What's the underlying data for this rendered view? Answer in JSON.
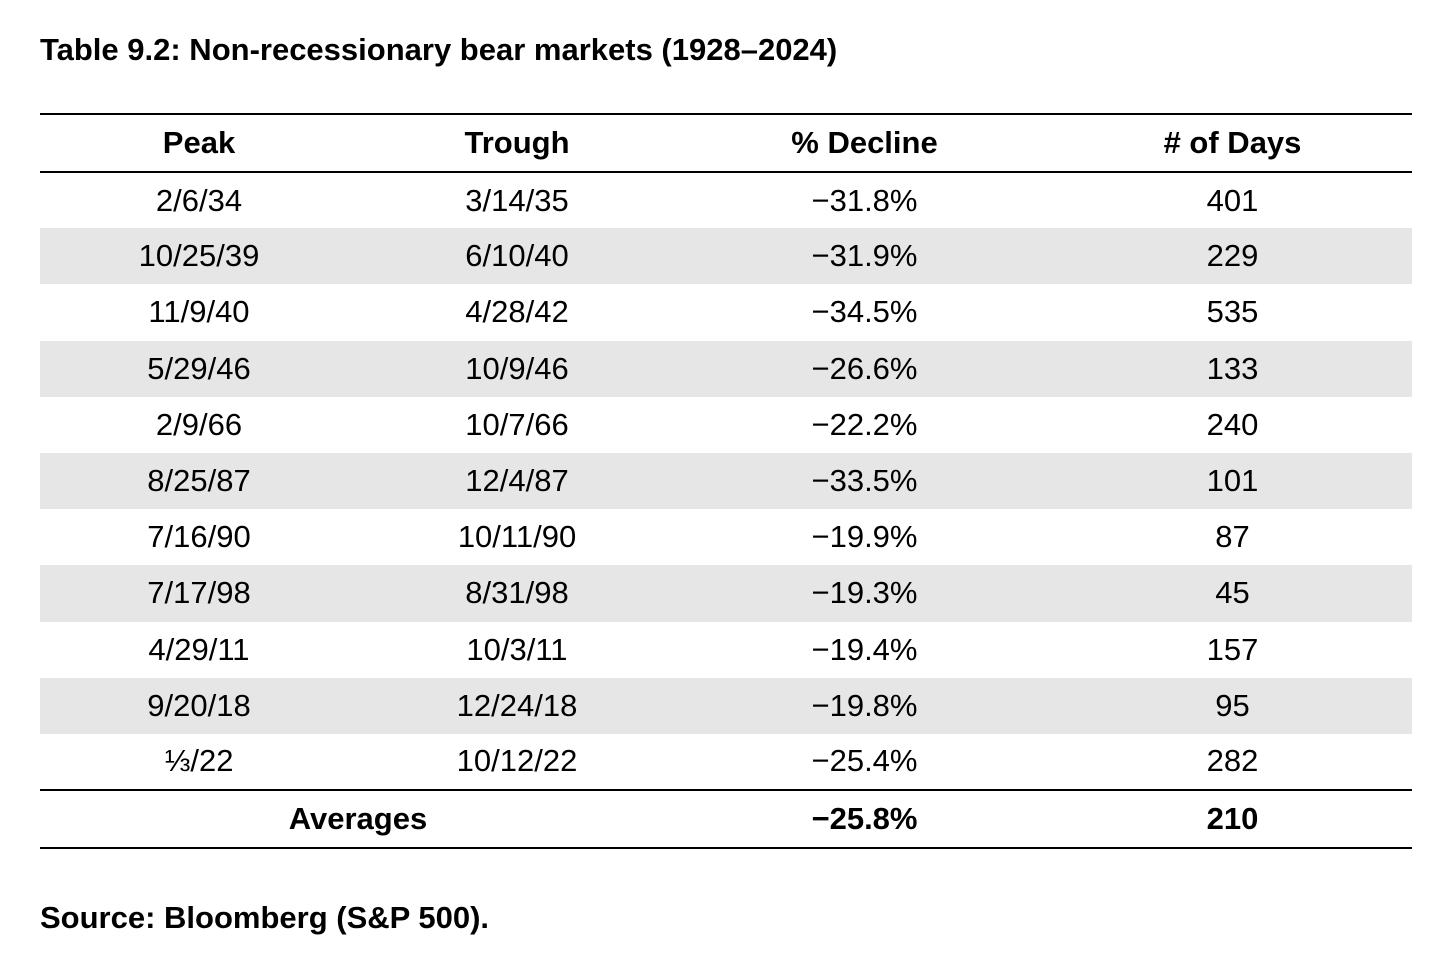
{
  "title": "Table 9.2: Non-recessionary bear markets (1928–2024)",
  "table": {
    "headers": [
      "Peak",
      "Trough",
      "% Decline",
      "# of Days"
    ],
    "rows": [
      [
        "2/6/34",
        "3/14/35",
        "−31.8%",
        "401"
      ],
      [
        "10/25/39",
        "6/10/40",
        "−31.9%",
        "229"
      ],
      [
        "11/9/40",
        "4/28/42",
        "−34.5%",
        "535"
      ],
      [
        "5/29/46",
        "10/9/46",
        "−26.6%",
        "133"
      ],
      [
        "2/9/66",
        "10/7/66",
        "−22.2%",
        "240"
      ],
      [
        "8/25/87",
        "12/4/87",
        "−33.5%",
        "101"
      ],
      [
        "7/16/90",
        "10/11/90",
        "−19.9%",
        "87"
      ],
      [
        "7/17/98",
        "8/31/98",
        "−19.3%",
        "45"
      ],
      [
        "4/29/11",
        "10/3/11",
        "−19.4%",
        "157"
      ],
      [
        "9/20/18",
        "12/24/18",
        "−19.8%",
        "95"
      ],
      [
        "⅓/22",
        "10/12/22",
        "−25.4%",
        "282"
      ]
    ],
    "footer": {
      "label": "Averages",
      "decline": "−25.8%",
      "days": "210"
    },
    "colors": {
      "stripe": "#e5e6e5",
      "rule": "#000000"
    }
  },
  "source": "Source: Bloomberg (S&P 500)."
}
